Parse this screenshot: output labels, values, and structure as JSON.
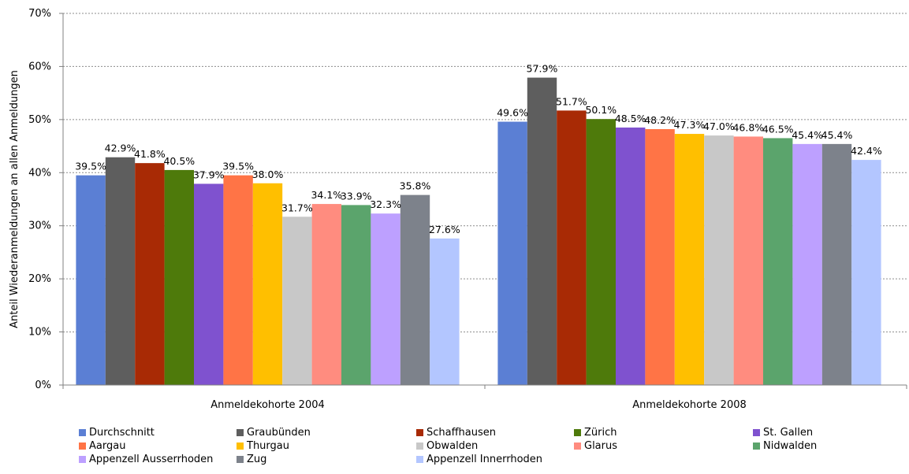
{
  "chart_data": {
    "type": "bar",
    "title": "",
    "xlabel": "",
    "ylabel": "Anteil Wiederanmeldungen an allen  Anmeldungen",
    "ylim": [
      0,
      0.7
    ],
    "yticks": [
      "0%",
      "10%",
      "20%",
      "30%",
      "40%",
      "50%",
      "60%",
      "70%"
    ],
    "grid": "horizontal dashed",
    "legend_position": "bottom",
    "categories": [
      "Anmeldekohorte 2004",
      "Anmeldekohorte 2008"
    ],
    "series": [
      {
        "name": "Durchschnitt",
        "color": "#5B7FD4",
        "values": [
          0.395,
          0.496
        ],
        "labels": [
          "39.5%",
          "49.6%"
        ]
      },
      {
        "name": "Graubünden",
        "color": "#5E5E5E",
        "values": [
          0.429,
          0.579
        ],
        "labels": [
          "42.9%",
          "57.9%"
        ]
      },
      {
        "name": "Schaffhausen",
        "color": "#A82A05",
        "values": [
          0.418,
          0.517
        ],
        "labels": [
          "41.8%",
          "51.7%"
        ]
      },
      {
        "name": "Zürich",
        "color": "#4E7A0B",
        "values": [
          0.405,
          0.501
        ],
        "labels": [
          "40.5%",
          "50.1%"
        ]
      },
      {
        "name": "St. Gallen",
        "color": "#7F52CF",
        "values": [
          0.379,
          0.485
        ],
        "labels": [
          "37.9%",
          "48.5%"
        ]
      },
      {
        "name": "Aargau",
        "color": "#FF7446",
        "values": [
          0.395,
          0.482
        ],
        "labels": [
          "39.5%",
          "48.2%"
        ]
      },
      {
        "name": "Thurgau",
        "color": "#FFBF00",
        "values": [
          0.38,
          0.473
        ],
        "labels": [
          "38.0%",
          "47.3%"
        ]
      },
      {
        "name": "Obwalden",
        "color": "#C8C8C8",
        "values": [
          0.317,
          0.47
        ],
        "labels": [
          "31.7%",
          "47.0%"
        ]
      },
      {
        "name": "Glarus",
        "color": "#FF8C7F",
        "values": [
          0.341,
          0.468
        ],
        "labels": [
          "34.1%",
          "46.8%"
        ]
      },
      {
        "name": "Nidwalden",
        "color": "#5BA46C",
        "values": [
          0.339,
          0.465
        ],
        "labels": [
          "33.9%",
          "46.5%"
        ]
      },
      {
        "name": "Appenzell Ausserrhoden",
        "color": "#BDA0FF",
        "values": [
          0.323,
          0.454
        ],
        "labels": [
          "32.3%",
          "45.4%"
        ]
      },
      {
        "name": "Zug",
        "color": "#7D828B",
        "values": [
          0.358,
          0.454
        ],
        "labels": [
          "35.8%",
          "45.4%"
        ]
      },
      {
        "name": "Appenzell Innerrhoden",
        "color": "#B3C6FF",
        "values": [
          0.276,
          0.424
        ],
        "labels": [
          "27.6%",
          "42.4%"
        ]
      }
    ]
  }
}
